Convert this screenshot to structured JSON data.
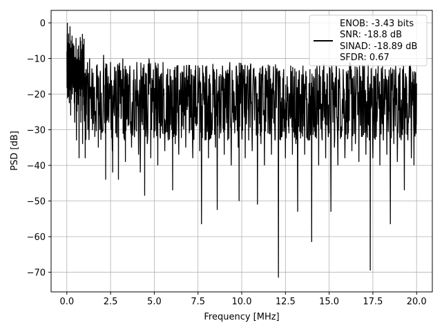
{
  "chart_data": {
    "type": "line",
    "xlabel": "Frequency [MHz]",
    "ylabel": "PSD [dB]",
    "xlim": [
      -0.9,
      20.9
    ],
    "ylim": [
      -75.5,
      3.5
    ],
    "xticks": [
      0.0,
      2.5,
      5.0,
      7.5,
      10.0,
      12.5,
      15.0,
      17.5,
      20.0
    ],
    "xtick_labels": [
      "0.0",
      "2.5",
      "5.0",
      "7.5",
      "10.0",
      "12.5",
      "15.0",
      "17.5",
      "20.0"
    ],
    "yticks": [
      0,
      -10,
      -20,
      -30,
      -40,
      -50,
      -60,
      -70
    ],
    "ytick_labels": [
      "0",
      "−10",
      "−20",
      "−30",
      "−40",
      "−50",
      "−60",
      "−70"
    ],
    "grid": true,
    "legend_position": "top-right",
    "line_color": "#000000",
    "legend": {
      "lines": [
        "ENOB: -3.43 bits",
        "SNR: -18.8 dB",
        "SINAD: -18.89 dB",
        "SFDR: 0.67"
      ]
    },
    "series": [
      {
        "description_points": "representative envelope of the noisy PSD trace",
        "points": [
          [
            0.0,
            -8
          ],
          [
            0.03,
            0
          ],
          [
            0.06,
            -19
          ],
          [
            0.1,
            -3
          ],
          [
            0.14,
            -22
          ],
          [
            0.18,
            -1
          ],
          [
            0.22,
            -26
          ],
          [
            0.28,
            -5
          ],
          [
            0.33,
            -18
          ],
          [
            0.4,
            -9
          ],
          [
            0.45,
            -28
          ],
          [
            0.5,
            -12
          ],
          [
            0.55,
            -33
          ],
          [
            0.6,
            -10
          ],
          [
            0.65,
            -23
          ],
          [
            0.7,
            -38
          ],
          [
            0.75,
            -15
          ],
          [
            0.8,
            -28
          ],
          [
            0.85,
            -8
          ],
          [
            0.9,
            -34
          ],
          [
            0.95,
            -14
          ],
          [
            1.0,
            -26
          ],
          [
            1.05,
            -38
          ],
          [
            1.1,
            -13
          ],
          [
            1.2,
            -30
          ],
          [
            1.3,
            -10
          ],
          [
            1.4,
            -27
          ],
          [
            1.5,
            -14
          ],
          [
            1.6,
            -32
          ],
          [
            1.7,
            -12
          ],
          [
            1.8,
            -35
          ],
          [
            1.9,
            -15
          ],
          [
            2.0,
            -29
          ],
          [
            2.1,
            -9
          ],
          [
            2.2,
            -31
          ],
          [
            2.22,
            -44
          ],
          [
            2.3,
            -15
          ],
          [
            2.4,
            -28
          ],
          [
            2.5,
            -11
          ],
          [
            2.6,
            -36
          ],
          [
            2.62,
            -42
          ],
          [
            2.7,
            -16
          ],
          [
            2.8,
            -31
          ],
          [
            2.9,
            -12
          ],
          [
            2.95,
            -44
          ],
          [
            3.0,
            -18
          ],
          [
            3.1,
            -27
          ],
          [
            3.2,
            -10
          ],
          [
            3.3,
            -33
          ],
          [
            3.35,
            -39
          ],
          [
            3.4,
            -14
          ],
          [
            3.5,
            -29
          ],
          [
            3.6,
            -12
          ],
          [
            3.7,
            -35
          ],
          [
            3.8,
            -16
          ],
          [
            3.9,
            -30
          ],
          [
            4.0,
            -11
          ],
          [
            4.1,
            -37
          ],
          [
            4.2,
            -42
          ],
          [
            4.3,
            -15
          ],
          [
            4.4,
            -30
          ],
          [
            4.45,
            -48.5
          ],
          [
            4.5,
            -14
          ],
          [
            4.6,
            -34
          ],
          [
            4.7,
            -10
          ],
          [
            4.8,
            -38
          ],
          [
            4.9,
            -16
          ],
          [
            5.0,
            -28
          ],
          [
            5.1,
            -12
          ],
          [
            5.2,
            -40
          ],
          [
            5.3,
            -15
          ],
          [
            5.4,
            -29
          ],
          [
            5.5,
            -11
          ],
          [
            5.6,
            -36
          ],
          [
            5.7,
            -16
          ],
          [
            5.8,
            -33
          ],
          [
            5.9,
            -13
          ],
          [
            6.0,
            -30
          ],
          [
            6.05,
            -47
          ],
          [
            6.1,
            -16
          ],
          [
            6.2,
            -34
          ],
          [
            6.3,
            -12
          ],
          [
            6.4,
            -37
          ],
          [
            6.5,
            -14
          ],
          [
            6.6,
            -29
          ],
          [
            6.7,
            -12
          ],
          [
            6.8,
            -35
          ],
          [
            6.9,
            -16
          ],
          [
            7.0,
            -31
          ],
          [
            7.1,
            -13
          ],
          [
            7.2,
            -38
          ],
          [
            7.3,
            -15
          ],
          [
            7.4,
            -29
          ],
          [
            7.5,
            -12
          ],
          [
            7.6,
            -36
          ],
          [
            7.7,
            -56.5
          ],
          [
            7.8,
            -14
          ],
          [
            7.9,
            -33
          ],
          [
            8.0,
            -12
          ],
          [
            8.1,
            -38
          ],
          [
            8.2,
            -17
          ],
          [
            8.3,
            -30
          ],
          [
            8.4,
            -13
          ],
          [
            8.5,
            -35
          ],
          [
            8.6,
            -52.5
          ],
          [
            8.7,
            -15
          ],
          [
            8.8,
            -31
          ],
          [
            8.9,
            -12
          ],
          [
            9.0,
            -37
          ],
          [
            9.1,
            -15
          ],
          [
            9.2,
            -33
          ],
          [
            9.3,
            -13
          ],
          [
            9.4,
            -40
          ],
          [
            9.5,
            -16
          ],
          [
            9.6,
            -31
          ],
          [
            9.7,
            -12
          ],
          [
            9.8,
            -35
          ],
          [
            9.85,
            -50
          ],
          [
            9.9,
            -14
          ],
          [
            10.0,
            -30
          ],
          [
            10.1,
            -13
          ],
          [
            10.2,
            -38
          ],
          [
            10.3,
            -15
          ],
          [
            10.4,
            -33
          ],
          [
            10.5,
            -12
          ],
          [
            10.6,
            -36
          ],
          [
            10.8,
            -15
          ],
          [
            10.9,
            -51
          ],
          [
            11.0,
            -14
          ],
          [
            11.1,
            -34
          ],
          [
            11.2,
            -12
          ],
          [
            11.3,
            -40
          ],
          [
            11.4,
            -16
          ],
          [
            11.5,
            -31
          ],
          [
            11.6,
            -12
          ],
          [
            11.7,
            -37
          ],
          [
            11.8,
            -15
          ],
          [
            11.9,
            -33
          ],
          [
            12.0,
            -13
          ],
          [
            12.1,
            -71.5
          ],
          [
            12.2,
            -15
          ],
          [
            12.3,
            -32
          ],
          [
            12.4,
            -13
          ],
          [
            12.5,
            -38
          ],
          [
            12.6,
            -15
          ],
          [
            12.7,
            -31
          ],
          [
            12.8,
            -12
          ],
          [
            12.9,
            -37
          ],
          [
            13.0,
            -15
          ],
          [
            13.1,
            -34
          ],
          [
            13.2,
            -53
          ],
          [
            13.3,
            -14
          ],
          [
            13.4,
            -31
          ],
          [
            13.5,
            -12
          ],
          [
            13.6,
            -37
          ],
          [
            13.7,
            -15
          ],
          [
            13.8,
            -33
          ],
          [
            13.9,
            -13
          ],
          [
            14.0,
            -61.5
          ],
          [
            14.1,
            -15
          ],
          [
            14.2,
            -32
          ],
          [
            14.3,
            -12
          ],
          [
            14.4,
            -40
          ],
          [
            14.5,
            -15
          ],
          [
            14.6,
            -33
          ],
          [
            14.7,
            -12
          ],
          [
            14.8,
            -38
          ],
          [
            14.9,
            -15
          ],
          [
            15.0,
            -31
          ],
          [
            15.1,
            -53
          ],
          [
            15.2,
            -14
          ],
          [
            15.3,
            -35
          ],
          [
            15.4,
            -12
          ],
          [
            15.5,
            -40
          ],
          [
            15.6,
            -15
          ],
          [
            15.7,
            -32
          ],
          [
            15.8,
            -13
          ],
          [
            15.9,
            -38
          ],
          [
            16.0,
            -15
          ],
          [
            16.1,
            -31
          ],
          [
            16.2,
            -12
          ],
          [
            16.3,
            -36
          ],
          [
            16.4,
            -15
          ],
          [
            16.5,
            -34
          ],
          [
            16.6,
            -13
          ],
          [
            16.7,
            -39
          ],
          [
            16.8,
            -15
          ],
          [
            16.9,
            -32
          ],
          [
            17.0,
            -12
          ],
          [
            17.1,
            -37
          ],
          [
            17.2,
            -15
          ],
          [
            17.3,
            -33
          ],
          [
            17.35,
            -69.5
          ],
          [
            17.4,
            -13
          ],
          [
            17.5,
            -38
          ],
          [
            17.6,
            -15
          ],
          [
            17.7,
            -32
          ],
          [
            17.8,
            -12
          ],
          [
            17.9,
            -40
          ],
          [
            18.0,
            -15
          ],
          [
            18.1,
            -33
          ],
          [
            18.2,
            -13
          ],
          [
            18.3,
            -37
          ],
          [
            18.4,
            -15
          ],
          [
            18.5,
            -56.5
          ],
          [
            18.6,
            -14
          ],
          [
            18.7,
            -34
          ],
          [
            18.8,
            -12
          ],
          [
            18.9,
            -39
          ],
          [
            19.0,
            -15
          ],
          [
            19.1,
            -32
          ],
          [
            19.2,
            -13
          ],
          [
            19.3,
            -47
          ],
          [
            19.4,
            -15
          ],
          [
            19.5,
            -33
          ],
          [
            19.6,
            -12
          ],
          [
            19.7,
            -38
          ],
          [
            19.8,
            -15
          ],
          [
            19.85,
            -40
          ],
          [
            19.9,
            -18
          ],
          [
            19.95,
            -30
          ],
          [
            20.0,
            -17
          ]
        ]
      }
    ]
  }
}
